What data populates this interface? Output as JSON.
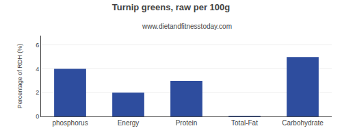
{
  "chart_data": {
    "type": "bar",
    "title": "Turnip greens, raw per 100g",
    "subtitle": "www.dietandfitnesstoday.com",
    "categories": [
      "phosphorus",
      "Energy",
      "Protein",
      "Total-Fat",
      "Carbohydrate"
    ],
    "values": [
      4.0,
      2.0,
      3.0,
      0.05,
      5.0
    ],
    "color": "#2e4d9e",
    "ylabel": "Percentage of RDH (%)",
    "ylim": [
      0,
      6.8
    ],
    "yticks": [
      0,
      2,
      4,
      6
    ],
    "grid": true
  }
}
